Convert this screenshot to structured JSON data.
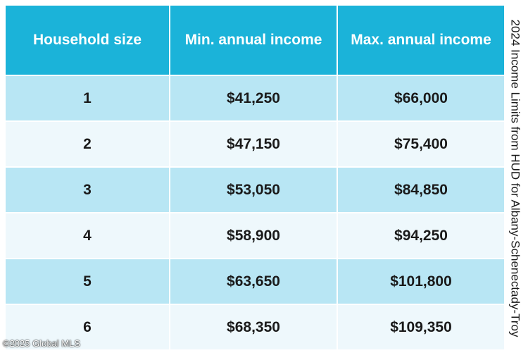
{
  "side_title": "2024 Income Limits from HUD for Albany-Schenectady-Troy",
  "watermark": "©2025 Global MLS",
  "colors": {
    "header": "#1bb3d9",
    "row_dark": "#b8e6f4",
    "row_light": "#eef8fc"
  },
  "table": {
    "headers": [
      "Household size",
      "Min. annual income",
      "Max. annual income"
    ],
    "rows": [
      [
        "1",
        "$41,250",
        "$66,000"
      ],
      [
        "2",
        "$47,150",
        "$75,400"
      ],
      [
        "3",
        "$53,050",
        "$84,850"
      ],
      [
        "4",
        "$58,900",
        "$94,250"
      ],
      [
        "5",
        "$63,650",
        "$101,800"
      ],
      [
        "6",
        "$68,350",
        "$109,350"
      ]
    ]
  }
}
